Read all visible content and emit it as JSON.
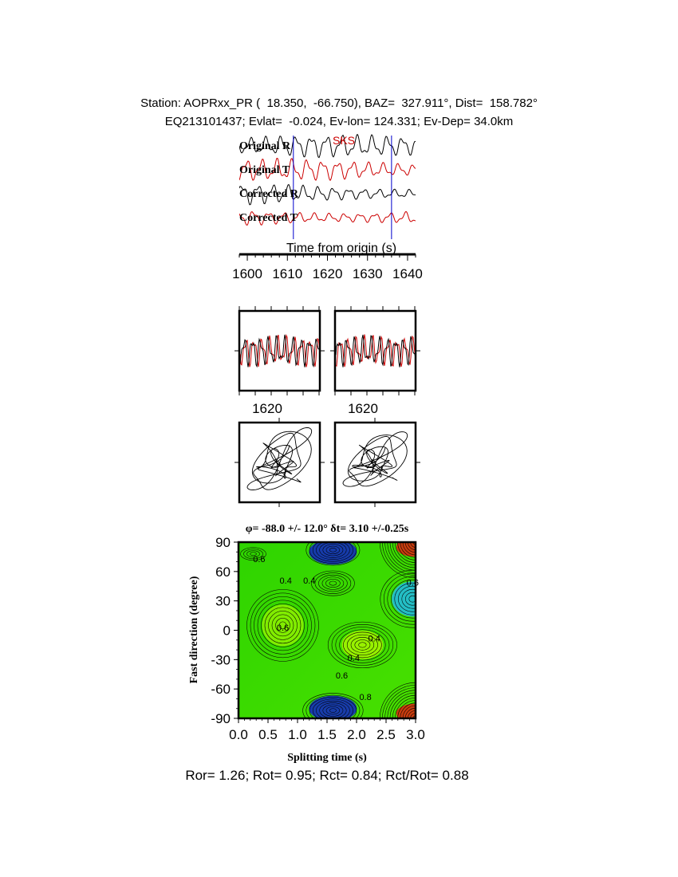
{
  "header": {
    "line1": "Station: AOPRxx_PR (  18.350,  -66.750), BAZ=  327.911°, Dist=  158.782°",
    "line2": "EQ213101437; Evlat=  -0.024, Ev-lon= 124.331; Ev-Dep= 34.0km"
  },
  "footer": {
    "text": "Ror= 1.26; Rot= 0.95; Rct= 0.84; Rct/Rot= 0.88"
  },
  "colors": {
    "radial": "#000000",
    "transverse": "#cc0000",
    "phase_label": "#cc0000",
    "window_marker": "#0000cc"
  },
  "chart_data": [
    {
      "type": "line",
      "panel": "waveforms",
      "phase_label": "SKS",
      "xlabel": "Time from origin (s)",
      "xlim": [
        1598,
        1642
      ],
      "x_ticks": [
        1600,
        1610,
        1620,
        1630,
        1640
      ],
      "window_markers": [
        1611.5,
        1636
      ],
      "series": [
        {
          "name": "Original R",
          "component": "radial"
        },
        {
          "name": "Original T",
          "component": "transverse"
        },
        {
          "name": "Corrected R",
          "component": "radial"
        },
        {
          "name": "Corrected T",
          "component": "transverse"
        }
      ]
    },
    {
      "type": "line",
      "panel": "windowed-waveforms",
      "subplots": [
        {
          "name": "original",
          "x_ticks": [
            1620
          ]
        },
        {
          "name": "corrected",
          "x_ticks": [
            1620
          ]
        }
      ]
    },
    {
      "type": "scatter",
      "panel": "particle-motion",
      "subplots": [
        {
          "name": "original"
        },
        {
          "name": "corrected"
        }
      ]
    },
    {
      "type": "heatmap",
      "panel": "energy-grid",
      "title": "φ= -88.0 +/- 12.0° δt= 3.10 +/-0.25s",
      "xlabel": "Splitting time (s)",
      "ylabel": "Fast direction (degree)",
      "xlim": [
        0,
        3.0
      ],
      "ylim": [
        -90,
        90
      ],
      "x_ticks": [
        "0.0",
        "0.5",
        "1.0",
        "1.5",
        "2.0",
        "2.5",
        "3.0"
      ],
      "y_ticks": [
        "90",
        "60",
        "30",
        "0",
        "-30",
        "-60",
        "-90"
      ],
      "best_fit": {
        "phi": -88.0,
        "phi_err": 12.0,
        "dt": 3.1,
        "dt_err": 0.25
      },
      "contour_labels": [
        {
          "text": "0.6",
          "dt": 0.35,
          "phi": 73
        },
        {
          "text": "0.4",
          "dt": 0.8,
          "phi": 51
        },
        {
          "text": "0.4",
          "dt": 1.2,
          "phi": 51
        },
        {
          "text": "0.6",
          "dt": 2.95,
          "phi": 49
        },
        {
          "text": "0.6",
          "dt": 0.75,
          "phi": 3
        },
        {
          "text": "0.4",
          "dt": 2.3,
          "phi": -8
        },
        {
          "text": "0.4",
          "dt": 1.95,
          "phi": -28
        },
        {
          "text": "0.6",
          "dt": 1.75,
          "phi": -46
        },
        {
          "text": "0.8",
          "dt": 2.15,
          "phi": -68
        }
      ]
    }
  ]
}
